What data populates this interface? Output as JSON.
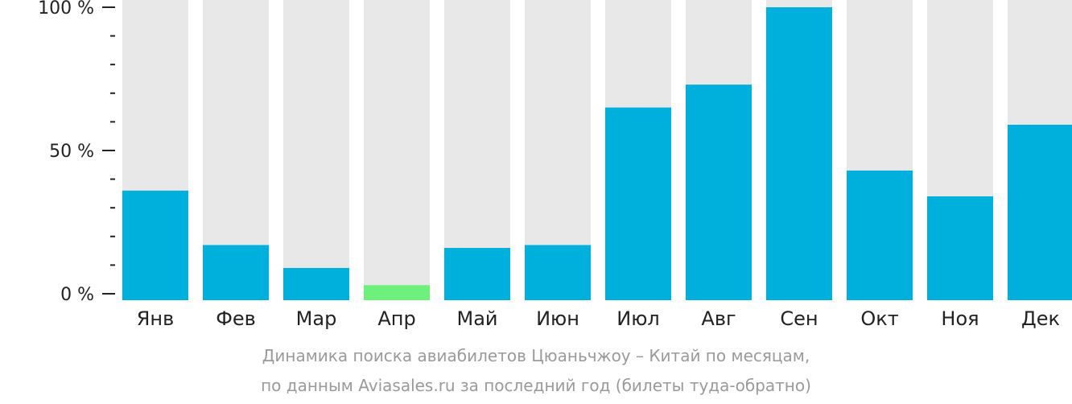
{
  "chart_data": {
    "type": "bar",
    "categories": [
      "Янв",
      "Фев",
      "Мар",
      "Апр",
      "Май",
      "Июн",
      "Июл",
      "Авг",
      "Сен",
      "Окт",
      "Ноя",
      "Дек"
    ],
    "values": [
      36,
      17,
      9,
      3,
      16,
      17,
      65,
      73,
      100,
      43,
      34,
      59
    ],
    "highlight_index": 3,
    "ylim": [
      0,
      100
    ],
    "yticks": [
      0,
      50,
      100
    ],
    "ytick_labels": [
      "0 %",
      "50 %",
      "100 %"
    ],
    "minor_tick_step": 10,
    "colors": {
      "bar": "#00b0dc",
      "highlight": "#6ef07d",
      "background_bar": "#e8e8e8",
      "axis": "#222222"
    }
  },
  "caption": {
    "line1": "Динамика поиска авиабилетов Цюаньчжоу – Китай по месяцам,",
    "line2": "по данным Aviasales.ru за последний год (билеты туда-обратно)"
  }
}
